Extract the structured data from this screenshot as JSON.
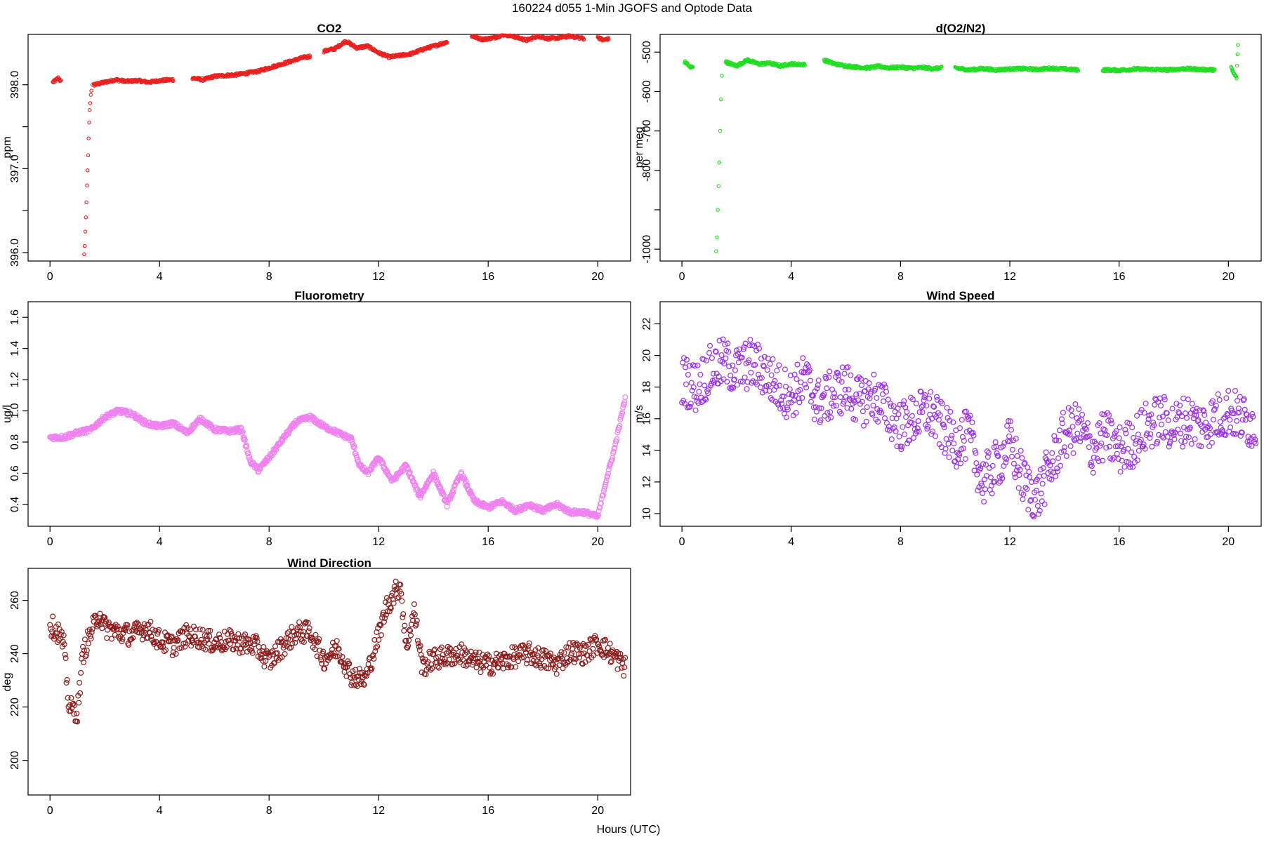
{
  "page_title": "160224   d055   1-Min  JGOFS and Optode Data",
  "xaxis_label": "Hours (UTC)",
  "chart_data": [
    {
      "id": "co2",
      "type": "scatter",
      "title": "CO2",
      "ylabel": "ppm",
      "color": "#e8201f",
      "marker": "small-circle",
      "xlim": [
        -0.8,
        21.2
      ],
      "ylim": [
        395.9,
        398.6
      ],
      "xticks": [
        0,
        4,
        8,
        12,
        16,
        20
      ],
      "yticks": [
        396.0,
        396.5,
        397.0,
        397.5,
        398.0
      ],
      "ytick_labels": [
        "396.0",
        "",
        "397.0",
        "",
        "398.0"
      ],
      "segments": [
        {
          "x": [
            0.1,
            0.2,
            0.3,
            0.4
          ],
          "y": [
            398.03,
            398.05,
            398.08,
            398.04
          ]
        },
        {
          "x": [
            1.25,
            1.27,
            1.29,
            1.31,
            1.33,
            1.35,
            1.37,
            1.39,
            1.41,
            1.43,
            1.45,
            1.47,
            1.49,
            1.51,
            1.55
          ],
          "y": [
            395.98,
            396.08,
            396.25,
            396.42,
            396.6,
            396.8,
            396.98,
            397.16,
            397.36,
            397.55,
            397.7,
            397.78,
            397.88,
            397.93,
            398.0
          ]
        },
        {
          "x": [
            1.6,
            2.0,
            2.4,
            2.8,
            3.2,
            3.6,
            4.0,
            4.5
          ],
          "y": [
            398.0,
            398.03,
            398.06,
            398.04,
            398.05,
            398.03,
            398.05,
            398.06
          ]
        },
        {
          "x": [
            5.2,
            5.6,
            6.0,
            6.4,
            6.8,
            7.2,
            7.6,
            8.0,
            8.4,
            8.8,
            9.2,
            9.5
          ],
          "y": [
            398.08,
            398.06,
            398.1,
            398.11,
            398.12,
            398.14,
            398.16,
            398.2,
            398.24,
            398.28,
            398.32,
            398.34
          ]
        },
        {
          "x": [
            10.0,
            10.4,
            10.8,
            11.2,
            11.6,
            12.0,
            12.4,
            12.8,
            13.2,
            13.6,
            14.0,
            14.5
          ],
          "y": [
            398.4,
            398.43,
            398.52,
            398.44,
            398.46,
            398.38,
            398.33,
            398.35,
            398.37,
            398.42,
            398.46,
            398.51
          ]
        },
        {
          "x": [
            15.4,
            15.8,
            16.2,
            16.6,
            17.0,
            17.4,
            17.8,
            18.2,
            18.6,
            19.0,
            19.5
          ],
          "y": [
            398.58,
            398.54,
            398.56,
            398.6,
            398.57,
            398.53,
            398.58,
            398.55,
            398.56,
            398.58,
            398.55
          ]
        },
        {
          "x": [
            20.0,
            20.2,
            20.4
          ],
          "y": [
            398.57,
            398.53,
            398.55
          ]
        }
      ]
    },
    {
      "id": "o2n2",
      "type": "scatter",
      "title": "d(O2/N2)",
      "ylabel": "per meg",
      "color": "#22dd22",
      "marker": "small-circle",
      "xlim": [
        -0.8,
        21.2
      ],
      "ylim": [
        -1030,
        -455
      ],
      "xticks": [
        0,
        4,
        8,
        12,
        16,
        20
      ],
      "yticks": [
        -1000,
        -900,
        -800,
        -700,
        -600,
        -500
      ],
      "ytick_labels": [
        "-1000",
        "",
        "-800",
        "-700",
        "-600",
        "-500"
      ],
      "segments": [
        {
          "x": [
            0.1,
            0.2,
            0.3,
            0.4
          ],
          "y": [
            -525,
            -530,
            -540,
            -535
          ]
        },
        {
          "x": [
            1.25,
            1.28,
            1.31,
            1.34,
            1.37,
            1.4,
            1.43,
            1.46
          ],
          "y": [
            -1005,
            -970,
            -900,
            -840,
            -780,
            -700,
            -620,
            -560
          ]
        },
        {
          "x": [
            1.6,
            2.0,
            2.4,
            2.8,
            3.2,
            3.6,
            4.0,
            4.5
          ],
          "y": [
            -525,
            -535,
            -520,
            -530,
            -528,
            -535,
            -530,
            -532
          ]
        },
        {
          "x": [
            5.2,
            5.6,
            6.0,
            6.4,
            6.8,
            7.2,
            7.6,
            8.0,
            8.4,
            8.8,
            9.2,
            9.5
          ],
          "y": [
            -520,
            -530,
            -535,
            -538,
            -540,
            -536,
            -540,
            -538,
            -541,
            -539,
            -542,
            -540
          ]
        },
        {
          "x": [
            10.0,
            10.5,
            11.0,
            11.5,
            12.0,
            12.5,
            13.0,
            13.5,
            14.0,
            14.5
          ],
          "y": [
            -540,
            -545,
            -542,
            -545,
            -543,
            -542,
            -544,
            -541,
            -543,
            -545
          ]
        },
        {
          "x": [
            15.4,
            16.0,
            16.6,
            17.2,
            17.8,
            18.4,
            19.0,
            19.5
          ],
          "y": [
            -545,
            -546,
            -543,
            -544,
            -545,
            -542,
            -544,
            -545
          ]
        },
        {
          "x": [
            20.1,
            20.2,
            20.3,
            20.35
          ],
          "y": [
            -540,
            -555,
            -565,
            -480
          ]
        }
      ]
    },
    {
      "id": "fluorometry",
      "type": "scatter",
      "title": "Fluorometry",
      "ylabel": "ug/l",
      "color": "#ee82ee",
      "marker": "open-circle",
      "xlim": [
        -0.8,
        21.2
      ],
      "ylim": [
        0.26,
        1.7
      ],
      "xticks": [
        0,
        4,
        8,
        12,
        16,
        20
      ],
      "yticks": [
        0.4,
        0.6,
        0.8,
        1.0,
        1.2,
        1.4,
        1.6
      ],
      "ytick_labels": [
        "0.4",
        "0.6",
        "0.8",
        "1.0",
        "1.2",
        "1.4",
        "1.6"
      ],
      "x": [
        0,
        0.5,
        1.0,
        1.5,
        2.0,
        2.5,
        3.0,
        3.5,
        4.0,
        4.5,
        5.0,
        5.5,
        6.0,
        6.5,
        7.0,
        7.3,
        7.6,
        8.0,
        8.5,
        9.0,
        9.5,
        10.0,
        10.5,
        11.0,
        11.3,
        11.6,
        12.0,
        12.5,
        13.0,
        13.5,
        14.0,
        14.5,
        15.0,
        15.5,
        16.0,
        16.5,
        17.0,
        17.5,
        18.0,
        18.5,
        19.0,
        19.5,
        20.0,
        20.3,
        20.6,
        21.0
      ],
      "y": [
        0.83,
        0.83,
        0.86,
        0.88,
        0.96,
        1.0,
        0.98,
        0.92,
        0.9,
        0.92,
        0.86,
        0.95,
        0.88,
        0.87,
        0.88,
        0.68,
        0.62,
        0.7,
        0.82,
        0.93,
        0.96,
        0.9,
        0.86,
        0.82,
        0.65,
        0.6,
        0.7,
        0.55,
        0.65,
        0.45,
        0.6,
        0.4,
        0.6,
        0.42,
        0.38,
        0.42,
        0.36,
        0.4,
        0.36,
        0.4,
        0.35,
        0.35,
        0.32,
        0.55,
        0.75,
        1.08
      ]
    },
    {
      "id": "wind_speed",
      "type": "scatter",
      "title": "Wind Speed",
      "ylabel": "m/s",
      "color": "#9b30e0",
      "marker": "open-circle",
      "xlim": [
        -0.8,
        21.2
      ],
      "ylim": [
        9.2,
        23.4
      ],
      "xticks": [
        0,
        4,
        8,
        12,
        16,
        20
      ],
      "yticks": [
        10,
        12,
        14,
        16,
        18,
        20,
        22
      ],
      "ytick_labels": [
        "10",
        "12",
        "14",
        "16",
        "18",
        "20",
        "22"
      ],
      "x": [
        0,
        0.5,
        1.0,
        1.5,
        2.0,
        2.5,
        3.0,
        3.5,
        4.0,
        4.5,
        5.0,
        5.5,
        6.0,
        6.5,
        7.0,
        7.5,
        8.0,
        8.5,
        9.0,
        9.5,
        10.0,
        10.5,
        11.0,
        11.5,
        12.0,
        12.5,
        13.0,
        13.5,
        14.0,
        14.5,
        15.0,
        15.5,
        16.0,
        16.5,
        17.0,
        17.5,
        18.0,
        18.5,
        19.0,
        19.5,
        20.0,
        20.5,
        21.0
      ],
      "y": [
        18.5,
        18.0,
        19.0,
        19.5,
        19.0,
        19.5,
        19.0,
        18.0,
        17.5,
        18.5,
        17.0,
        17.5,
        18.0,
        17.0,
        17.5,
        16.5,
        15.5,
        16.0,
        16.5,
        15.5,
        14.5,
        15.0,
        12.0,
        13.0,
        14.5,
        12.0,
        11.0,
        13.0,
        15.0,
        15.5,
        14.0,
        15.0,
        14.0,
        14.5,
        15.5,
        16.0,
        15.5,
        16.0,
        15.5,
        16.0,
        16.5,
        16.0,
        15.5
      ],
      "spread": 1.6
    },
    {
      "id": "wind_direction",
      "type": "scatter",
      "title": "Wind Direction",
      "ylabel": "deg",
      "color": "#8b1a1a",
      "marker": "open-circle",
      "xlim": [
        -0.8,
        21.2
      ],
      "ylim": [
        187,
        272
      ],
      "xticks": [
        0,
        4,
        8,
        12,
        16,
        20
      ],
      "yticks": [
        200,
        220,
        240,
        260
      ],
      "ytick_labels": [
        "200",
        "220",
        "240",
        "260"
      ],
      "x": [
        0,
        0.3,
        0.5,
        0.7,
        1.0,
        1.2,
        1.5,
        1.8,
        2.0,
        2.5,
        3.0,
        3.5,
        4.0,
        4.5,
        5.0,
        5.5,
        6.0,
        6.5,
        7.0,
        7.5,
        8.0,
        8.5,
        9.0,
        9.5,
        10.0,
        10.5,
        11.0,
        11.5,
        12.0,
        12.3,
        12.6,
        12.8,
        13.0,
        13.3,
        13.6,
        14.0,
        14.5,
        15.0,
        15.5,
        16.0,
        16.5,
        17.0,
        17.5,
        18.0,
        18.5,
        19.0,
        19.5,
        20.0,
        20.5,
        21.0
      ],
      "y": [
        251,
        248,
        243,
        220,
        218,
        240,
        248,
        255,
        250,
        248,
        247,
        250,
        245,
        243,
        247,
        246,
        244,
        245,
        244,
        243,
        237,
        243,
        248,
        248,
        238,
        242,
        232,
        230,
        247,
        258,
        263,
        266,
        242,
        256,
        235,
        238,
        239,
        240,
        237,
        236,
        237,
        239,
        240,
        238,
        236,
        241,
        240,
        244,
        240,
        235
      ],
      "spread": 4
    }
  ]
}
